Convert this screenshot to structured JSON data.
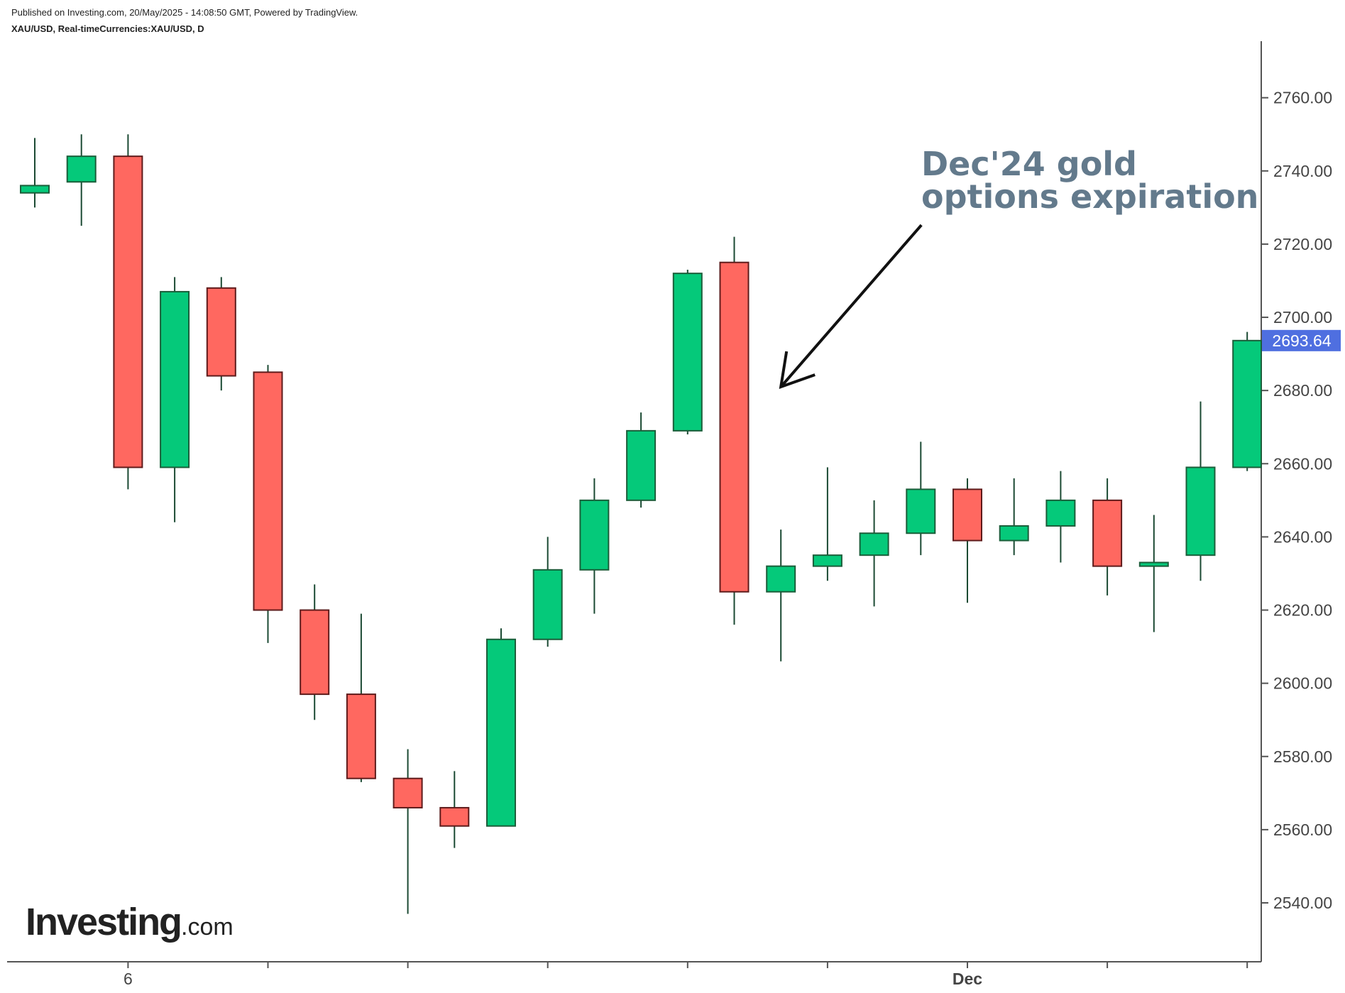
{
  "header": {
    "published": "Published on Investing.com, 20/May/2025 - 14:08:50 GMT, Powered by TradingView.",
    "symbol": "XAU/USD, Real-timeCurrencies:XAU/USD, D"
  },
  "logo": {
    "brand": "Investing",
    "suffix": ".com"
  },
  "chart_data": {
    "type": "candlestick",
    "symbol": "XAU/USD",
    "interval": "D",
    "ylim": [
      2523,
      2778
    ],
    "y_ticks": [
      2540,
      2560,
      2580,
      2600,
      2620,
      2640,
      2660,
      2680,
      2700,
      2720,
      2740,
      2760
    ],
    "y_tick_labels": [
      "2540.00",
      "2560.00",
      "2580.00",
      "2600.00",
      "2620.00",
      "2640.00",
      "2660.00",
      "2680.00",
      "2700.00",
      "2720.00",
      "2740.00",
      "2760.00"
    ],
    "x_labels": [
      {
        "index": 2,
        "text": "6"
      },
      {
        "index": 20,
        "text": "Dec"
      }
    ],
    "x_tick_indices": [
      2,
      5,
      8,
      11,
      14,
      17,
      20,
      23,
      26
    ],
    "last_price": 2693.64,
    "last_price_label": "2693.64",
    "candles": [
      {
        "open": 2734,
        "high": 2749,
        "low": 2730,
        "close": 2736
      },
      {
        "open": 2737,
        "high": 2750,
        "low": 2725,
        "close": 2744
      },
      {
        "open": 2744,
        "high": 2750,
        "low": 2653,
        "close": 2659
      },
      {
        "open": 2659,
        "high": 2711,
        "low": 2644,
        "close": 2707
      },
      {
        "open": 2708,
        "high": 2711,
        "low": 2680,
        "close": 2684
      },
      {
        "open": 2685,
        "high": 2687,
        "low": 2611,
        "close": 2620
      },
      {
        "open": 2620,
        "high": 2627,
        "low": 2590,
        "close": 2597
      },
      {
        "open": 2597,
        "high": 2619,
        "low": 2573,
        "close": 2574
      },
      {
        "open": 2574,
        "high": 2582,
        "low": 2537,
        "close": 2566
      },
      {
        "open": 2566,
        "high": 2576,
        "low": 2555,
        "close": 2561
      },
      {
        "open": 2561,
        "high": 2615,
        "low": 2561,
        "close": 2612
      },
      {
        "open": 2612,
        "high": 2640,
        "low": 2610,
        "close": 2631
      },
      {
        "open": 2631,
        "high": 2656,
        "low": 2619,
        "close": 2650
      },
      {
        "open": 2650,
        "high": 2674,
        "low": 2648,
        "close": 2669
      },
      {
        "open": 2669,
        "high": 2713,
        "low": 2668,
        "close": 2712
      },
      {
        "open": 2715,
        "high": 2722,
        "low": 2616,
        "close": 2625
      },
      {
        "open": 2625,
        "high": 2642,
        "low": 2606,
        "close": 2632
      },
      {
        "open": 2632,
        "high": 2659,
        "low": 2628,
        "close": 2635
      },
      {
        "open": 2635,
        "high": 2650,
        "low": 2621,
        "close": 2641
      },
      {
        "open": 2641,
        "high": 2666,
        "low": 2635,
        "close": 2653
      },
      {
        "open": 2653,
        "high": 2656,
        "low": 2622,
        "close": 2639
      },
      {
        "open": 2639,
        "high": 2656,
        "low": 2635,
        "close": 2643
      },
      {
        "open": 2643,
        "high": 2658,
        "low": 2633,
        "close": 2650
      },
      {
        "open": 2650,
        "high": 2656,
        "low": 2624,
        "close": 2632
      },
      {
        "open": 2632,
        "high": 2646,
        "low": 2614,
        "close": 2633
      },
      {
        "open": 2635,
        "high": 2677,
        "low": 2628,
        "close": 2659
      },
      {
        "open": 2659,
        "high": 2696,
        "low": 2658,
        "close": 2693.64
      }
    ],
    "annotation": {
      "lines": [
        "Dec'24 gold",
        "options expiration"
      ],
      "target_index": 16,
      "target_price": 2681
    },
    "colors": {
      "up": "#05c97a",
      "down": "#ff6860",
      "up_border": "#1b5e3a",
      "down_border": "#5e1b1b",
      "wick": "#1b4a33",
      "axis": "#555555",
      "tick_text": "#444444",
      "price_label_bg": "#4f6fe0",
      "annotation": "#637a8c"
    }
  }
}
